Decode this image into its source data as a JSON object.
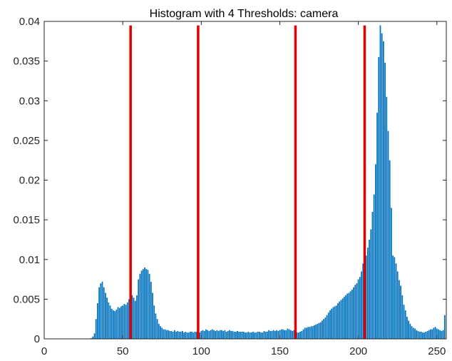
{
  "chart_data": {
    "type": "bar",
    "title": "Histogram with 4 Thresholds: camera",
    "xlabel": "",
    "ylabel": "",
    "xlim": [
      0,
      256
    ],
    "ylim": [
      0,
      0.04
    ],
    "xticks": [
      0,
      50,
      100,
      150,
      200,
      250
    ],
    "xtick_labels": [
      "0",
      "50",
      "100",
      "150",
      "200",
      "250"
    ],
    "yticks": [
      0,
      0.005,
      0.01,
      0.015,
      0.02,
      0.025,
      0.03,
      0.035,
      0.04
    ],
    "ytick_labels": [
      "0",
      "0.005",
      "0.01",
      "0.015",
      "0.02",
      "0.025",
      "0.03",
      "0.035",
      "0.04"
    ],
    "grid": false,
    "bar_color": "#0072BD",
    "threshold_color": "#E50000",
    "thresholds": [
      55,
      98,
      160,
      204
    ],
    "x": [
      0,
      1,
      2,
      3,
      4,
      5,
      6,
      7,
      8,
      9,
      10,
      11,
      12,
      13,
      14,
      15,
      16,
      17,
      18,
      19,
      20,
      21,
      22,
      23,
      24,
      25,
      26,
      27,
      28,
      29,
      30,
      31,
      32,
      33,
      34,
      35,
      36,
      37,
      38,
      39,
      40,
      41,
      42,
      43,
      44,
      45,
      46,
      47,
      48,
      49,
      50,
      51,
      52,
      53,
      54,
      55,
      56,
      57,
      58,
      59,
      60,
      61,
      62,
      63,
      64,
      65,
      66,
      67,
      68,
      69,
      70,
      71,
      72,
      73,
      74,
      75,
      76,
      77,
      78,
      79,
      80,
      81,
      82,
      83,
      84,
      85,
      86,
      87,
      88,
      89,
      90,
      91,
      92,
      93,
      94,
      95,
      96,
      97,
      98,
      99,
      100,
      101,
      102,
      103,
      104,
      105,
      106,
      107,
      108,
      109,
      110,
      111,
      112,
      113,
      114,
      115,
      116,
      117,
      118,
      119,
      120,
      121,
      122,
      123,
      124,
      125,
      126,
      127,
      128,
      129,
      130,
      131,
      132,
      133,
      134,
      135,
      136,
      137,
      138,
      139,
      140,
      141,
      142,
      143,
      144,
      145,
      146,
      147,
      148,
      149,
      150,
      151,
      152,
      153,
      154,
      155,
      156,
      157,
      158,
      159,
      160,
      161,
      162,
      163,
      164,
      165,
      166,
      167,
      168,
      169,
      170,
      171,
      172,
      173,
      174,
      175,
      176,
      177,
      178,
      179,
      180,
      181,
      182,
      183,
      184,
      185,
      186,
      187,
      188,
      189,
      190,
      191,
      192,
      193,
      194,
      195,
      196,
      197,
      198,
      199,
      200,
      201,
      202,
      203,
      204,
      205,
      206,
      207,
      208,
      209,
      210,
      211,
      212,
      213,
      214,
      215,
      216,
      217,
      218,
      219,
      220,
      221,
      222,
      223,
      224,
      225,
      226,
      227,
      228,
      229,
      230,
      231,
      232,
      233,
      234,
      235,
      236,
      237,
      238,
      239,
      240,
      241,
      242,
      243,
      244,
      245,
      246,
      247,
      248,
      249,
      250,
      251,
      252,
      253,
      254,
      255
    ],
    "values": [
      0,
      0,
      0,
      0,
      0,
      0,
      0,
      0,
      0,
      0,
      0,
      0,
      0,
      0,
      0,
      0,
      0,
      0,
      0,
      0,
      0,
      0,
      0,
      0,
      0,
      0,
      0,
      0,
      0,
      0,
      0.0001,
      0.0003,
      0.0007,
      0.0025,
      0.0045,
      0.0065,
      0.007,
      0.0072,
      0.0065,
      0.0058,
      0.0052,
      0.0046,
      0.0042,
      0.0038,
      0.0036,
      0.0035,
      0.0037,
      0.004,
      0.0039,
      0.0041,
      0.0042,
      0.0044,
      0.0043,
      0.0046,
      0.005,
      0.0053,
      0.0055,
      0.0052,
      0.0048,
      0.0055,
      0.0075,
      0.0082,
      0.0086,
      0.0088,
      0.009,
      0.0088,
      0.0087,
      0.0082,
      0.0072,
      0.0058,
      0.0042,
      0.0032,
      0.0025,
      0.0019,
      0.0016,
      0.0014,
      0.0012,
      0.0012,
      0.0011,
      0.0011,
      0.001,
      0.001,
      0.0009,
      0.0011,
      0.0009,
      0.001,
      0.0009,
      0.0009,
      0.001,
      0.0008,
      0.0009,
      0.0008,
      0.0008,
      0.0009,
      0.0009,
      0.0008,
      0.0009,
      0.0009,
      0.0008,
      0.0008,
      0.001,
      0.0011,
      0.001,
      0.0012,
      0.0011,
      0.001,
      0.0011,
      0.0012,
      0.0011,
      0.001,
      0.0011,
      0.001,
      0.0011,
      0.0011,
      0.001,
      0.0011,
      0.0009,
      0.001,
      0.0011,
      0.001,
      0.001,
      0.0009,
      0.0009,
      0.001,
      0.0009,
      0.0009,
      0.0009,
      0.0009,
      0.0008,
      0.0008,
      0.0009,
      0.0008,
      0.0008,
      0.0009,
      0.0008,
      0.0008,
      0.0009,
      0.0009,
      0.0008,
      0.0008,
      0.001,
      0.0009,
      0.0009,
      0.0011,
      0.001,
      0.001,
      0.0011,
      0.001,
      0.0011,
      0.001,
      0.0011,
      0.0012,
      0.0012,
      0.0011,
      0.0011,
      0.0013,
      0.0012,
      0.0011,
      0.001,
      0.0011,
      0.0009,
      0.0008,
      0.0008,
      0.0009,
      0.001,
      0.0012,
      0.0014,
      0.0014,
      0.0015,
      0.0015,
      0.0016,
      0.0016,
      0.0017,
      0.0018,
      0.0019,
      0.002,
      0.0021,
      0.0023,
      0.0025,
      0.0027,
      0.003,
      0.0033,
      0.0036,
      0.0038,
      0.004,
      0.0041,
      0.0042,
      0.0045,
      0.0047,
      0.0049,
      0.0051,
      0.0053,
      0.0055,
      0.0057,
      0.0058,
      0.006,
      0.0062,
      0.0065,
      0.0068,
      0.007,
      0.0075,
      0.0078,
      0.0085,
      0.0095,
      0.0098,
      0.0105,
      0.0115,
      0.0125,
      0.0138,
      0.016,
      0.0182,
      0.022,
      0.0285,
      0.0355,
      0.0395,
      0.0385,
      0.0375,
      0.0348,
      0.0305,
      0.0262,
      0.0225,
      0.0165,
      0.0105,
      0.0103,
      0.0095,
      0.0085,
      0.0074,
      0.0067,
      0.0055,
      0.0043,
      0.0036,
      0.0028,
      0.0023,
      0.0019,
      0.0016,
      0.0014,
      0.0013,
      0.0011,
      0.001,
      0.0009,
      0.0009,
      0.0008,
      0.0008,
      0.0009,
      0.001,
      0.0011,
      0.0012,
      0.0012,
      0.0014,
      0.0015,
      0.0013,
      0.0012,
      0.0011,
      0.001,
      0.0011,
      0.003
    ]
  }
}
